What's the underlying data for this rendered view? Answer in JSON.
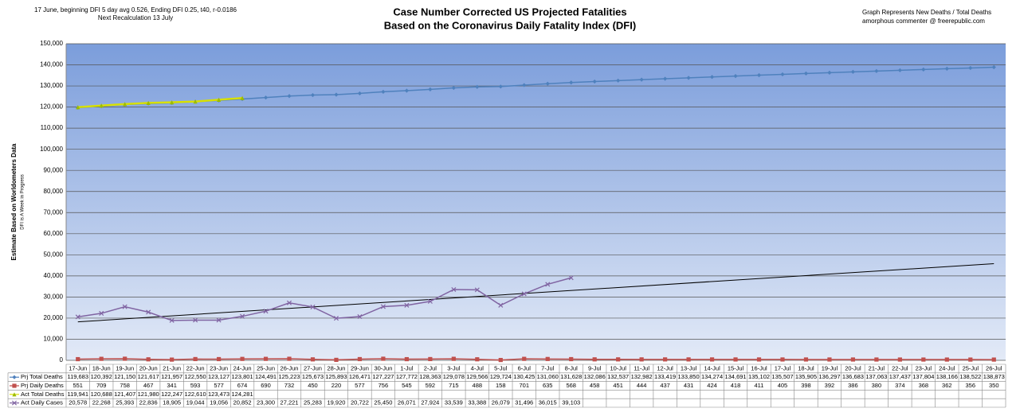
{
  "chart_data": {
    "type": "line",
    "title": [
      "Case Number Corrected US Projected Fatalities",
      "Based on the Coronavirus Daily Fatality Index (DFI)"
    ],
    "note_left": [
      "17 June, beginning DFI  5 day avg 0.526, Ending DFI  0.25,  t40, r-0.0186",
      "Next Recalculation 13 July"
    ],
    "note_right": [
      "Graph  Represents New Deaths / Total Deaths",
      "amorphous commenter  @  freerepublic.com"
    ],
    "y_label": "Estimate Based on Worldometers Data",
    "y_sublabel": "DFI is A Week in Progress",
    "ylim": [
      0,
      150000
    ],
    "yticks": [
      0,
      {
        "value": 10000,
        "label": "10,000"
      },
      {
        "value": 20000,
        "label": "20,000"
      },
      {
        "value": 30000,
        "label": "30,000"
      },
      {
        "value": 40000,
        "label": "40,000"
      },
      {
        "value": 50000,
        "label": "50,000"
      },
      {
        "value": 60000,
        "label": "60,000"
      },
      {
        "value": 70000,
        "label": "70,000"
      },
      {
        "value": 80000,
        "label": "80,000"
      },
      {
        "value": 90000,
        "label": "90,000"
      },
      {
        "value": 100000,
        "label": "100,000"
      },
      {
        "value": 110000,
        "label": "110,000"
      },
      {
        "value": 120000,
        "label": "120,000"
      },
      {
        "value": 130000,
        "label": "130,000"
      },
      {
        "value": 140000,
        "label": "140,000"
      },
      {
        "value": 150000,
        "label": "150,000"
      }
    ],
    "grid": true,
    "trendline": true,
    "categories": [
      "17-Jun",
      "18-Jun",
      "19-Jun",
      "20-Jun",
      "21-Jun",
      "22-Jun",
      "23-Jun",
      "24-Jun",
      "25-Jun",
      "26-Jun",
      "27-Jun",
      "28-Jun",
      "29-Jun",
      "30-Jun",
      "1-Jul",
      "2-Jul",
      "3-Jul",
      "4-Jul",
      "5-Jul",
      "6-Jul",
      "7-Jul",
      "8-Jul",
      "9-Jul",
      "10-Jul",
      "11-Jul",
      "12-Jul",
      "13-Jul",
      "14-Jul",
      "15-Jul",
      "16-Jul",
      "17-Jul",
      "18-Jul",
      "19-Jul",
      "20-Jul",
      "21-Jul",
      "22-Jul",
      "23-Jul",
      "24-Jul",
      "25-Jul",
      "26-Jul"
    ],
    "series": [
      {
        "name": "Prj Total Deaths",
        "color": "#4f81bd",
        "marker": "diamond",
        "values": [
          119683,
          120392,
          121150,
          121617,
          121957,
          122550,
          123127,
          123801,
          124491,
          125223,
          125673,
          125893,
          126471,
          127227,
          127772,
          128363,
          129078,
          129566,
          129724,
          130425,
          131060,
          131628,
          132086,
          132537,
          132982,
          133419,
          133850,
          134274,
          134691,
          135102,
          135507,
          135905,
          136297,
          136683,
          137063,
          137437,
          137804,
          138166,
          138522,
          138873
        ],
        "value_labels": [
          "119,683",
          "120,392",
          "121,150",
          "121,617",
          "121,957",
          "122,550",
          "123,127",
          "123,801",
          "124,491",
          "125,223",
          "125,673",
          "125,893",
          "126,471",
          "127,227",
          "127,772",
          "128,363",
          "129,078",
          "129,566",
          "129,724",
          "130,425",
          "131,060",
          "131,628",
          "132,086",
          "132,537",
          "132,982",
          "133,419",
          "133,850",
          "134,274",
          "134,691",
          "135,102",
          "135,507",
          "135,905",
          "136,297",
          "136,683",
          "137,063",
          "137,437",
          "137,804",
          "138,166",
          "138,522",
          "138,873"
        ]
      },
      {
        "name": "Prj Daily Deaths",
        "color": "#c0504d",
        "marker": "square",
        "values": [
          551,
          709,
          758,
          467,
          341,
          593,
          577,
          674,
          690,
          732,
          450,
          220,
          577,
          756,
          545,
          592,
          715,
          488,
          158,
          701,
          635,
          568,
          458,
          451,
          444,
          437,
          431,
          424,
          418,
          411,
          405,
          398,
          392,
          386,
          380,
          374,
          368,
          362,
          356,
          350
        ]
      },
      {
        "name": "Act Total Deaths",
        "color": "#d8e000",
        "marker": "triangle",
        "values": [
          119941,
          120688,
          121407,
          121980,
          122247,
          122610,
          123473,
          124281,
          null,
          null,
          null,
          null,
          null,
          null,
          null,
          null,
          null,
          null,
          null,
          null,
          null,
          null,
          null,
          null,
          null,
          null,
          null,
          null,
          null,
          null,
          null,
          null,
          null,
          null,
          null,
          null,
          null,
          null,
          null,
          null
        ],
        "value_labels": [
          "119,941",
          "120,688",
          "121,407",
          "121,980",
          "122,247",
          "122,610",
          "123,473",
          "124,281",
          null,
          null,
          null,
          null,
          null,
          null,
          null,
          null,
          null,
          null,
          null,
          null,
          null,
          null,
          null,
          null,
          null,
          null,
          null,
          null,
          null,
          null,
          null,
          null,
          null,
          null,
          null,
          null,
          null,
          null,
          null,
          null
        ]
      },
      {
        "name": "Act Daily Cases",
        "color": "#8064a2",
        "marker": "x",
        "values": [
          20578,
          22268,
          25393,
          22836,
          18905,
          19044,
          19056,
          20852,
          23300,
          27221,
          25283,
          19920,
          20722,
          25450,
          26071,
          27924,
          33539,
          33388,
          26079,
          31496,
          36015,
          39103,
          null,
          null,
          null,
          null,
          null,
          null,
          null,
          null,
          null,
          null,
          null,
          null,
          null,
          null,
          null,
          null,
          null,
          null
        ],
        "value_labels": [
          "20,578",
          "22,268",
          "25,393",
          "22,836",
          "18,905",
          "19,044",
          "19,056",
          "20,852",
          "23,300",
          "27,221",
          "25,283",
          "19,920",
          "20,722",
          "25,450",
          "26,071",
          "27,924",
          "33,539",
          "33,388",
          "26,079",
          "31,496",
          "36,015",
          "39,103",
          null,
          null,
          null,
          null,
          null,
          null,
          null,
          null,
          null,
          null,
          null,
          null,
          null,
          null,
          null,
          null,
          null,
          null
        ]
      }
    ]
  }
}
